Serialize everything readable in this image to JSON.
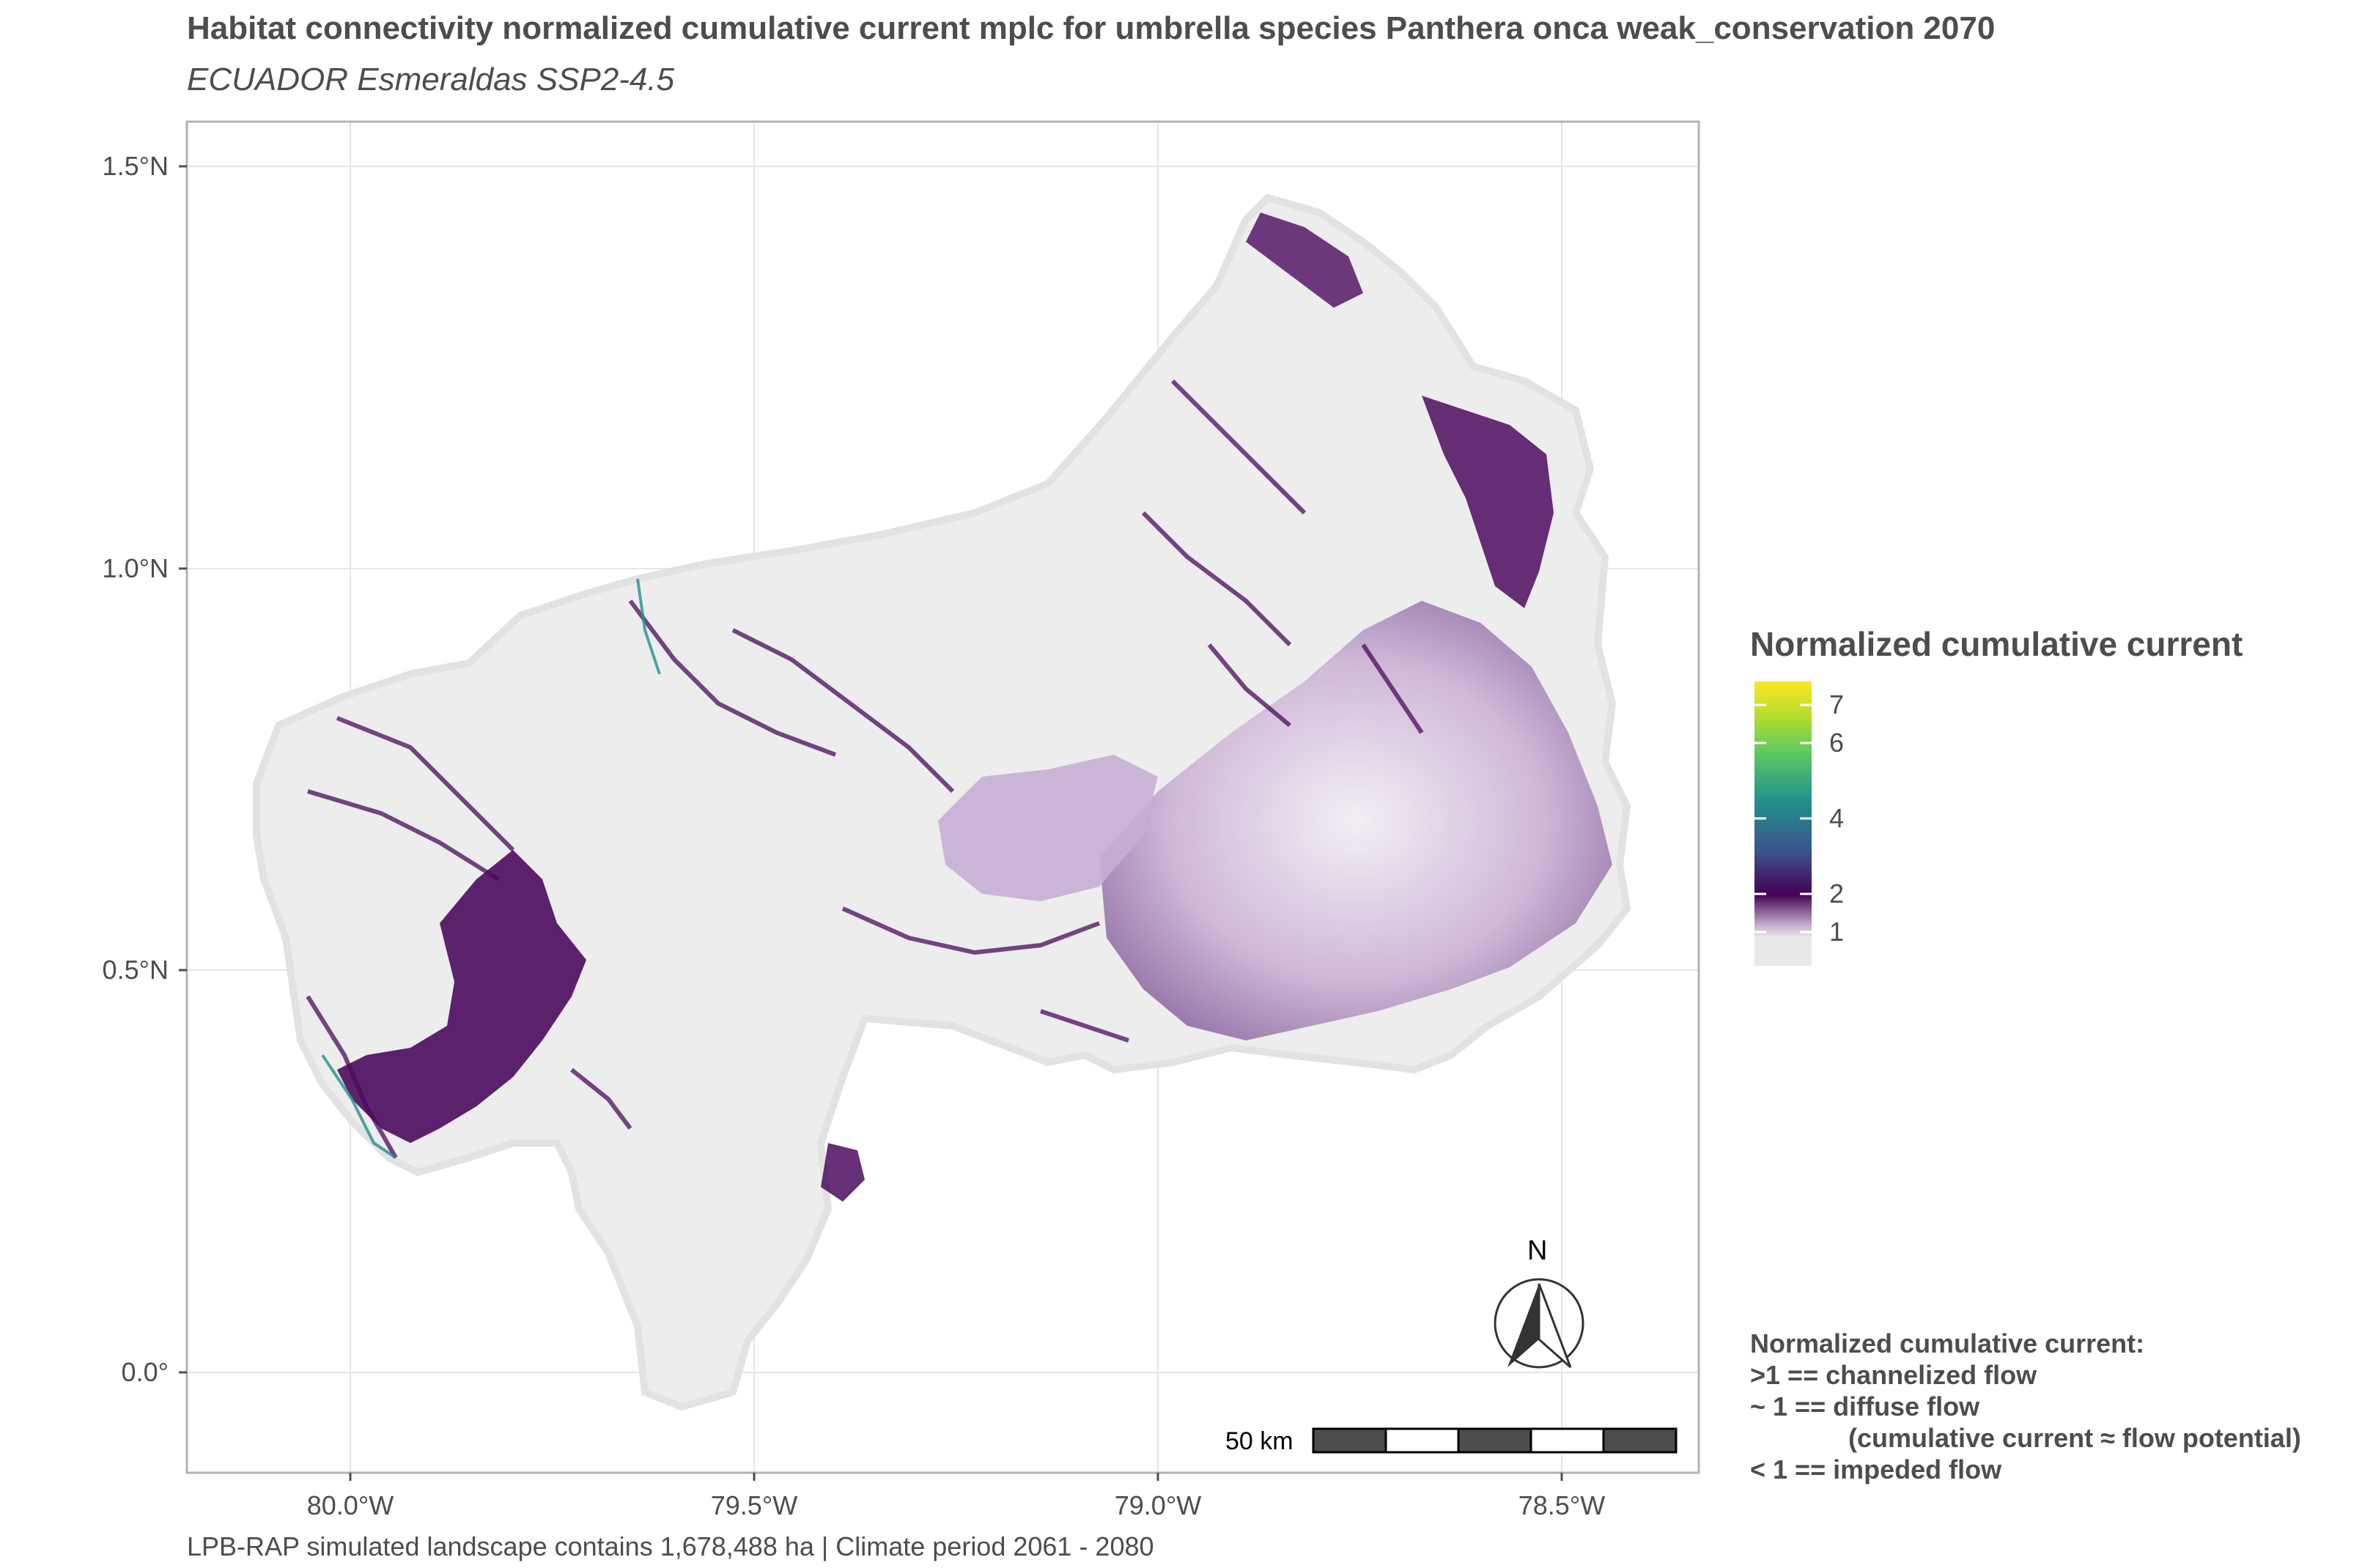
{
  "title": "Habitat connectivity normalized cumulative current mplc for umbrella species Panthera onca weak_conservation 2070",
  "subtitle": "ECUADOR Esmeraldas SSP2-4.5",
  "caption": "LPB-RAP simulated landscape contains 1,678,488 ha | Climate period 2061 - 2080",
  "axes": {
    "y_ticks": [
      "1.5°N",
      "1.0°N",
      "0.5°N",
      "0.0°"
    ],
    "x_ticks": [
      "80.0°W",
      "79.5°W",
      "79.0°W",
      "78.5°W"
    ]
  },
  "legend": {
    "title": "Normalized cumulative current",
    "ticks": [
      "7",
      "6",
      "4",
      "2",
      "1"
    ],
    "colors": [
      "#fde725",
      "#5ec962",
      "#21918c",
      "#3b528b",
      "#440154",
      "#e8e8e8"
    ]
  },
  "north_arrow": {
    "label": "N",
    "icon": "north-arrow-icon"
  },
  "scale_bar": {
    "label": "50 km"
  },
  "note": {
    "lines": [
      "Normalized cumulative current:",
      ">1 == channelized flow",
      "~ 1 == diffuse flow",
      "(cumulative current ≈ flow potential)",
      "< 1 == impeded flow"
    ]
  },
  "colors": {
    "panel_border": "#b3b3b3",
    "grid": "#e5e5e5",
    "land": "#ededed",
    "channel": "#4b0a5e",
    "diffuse": "#b89bc4"
  }
}
